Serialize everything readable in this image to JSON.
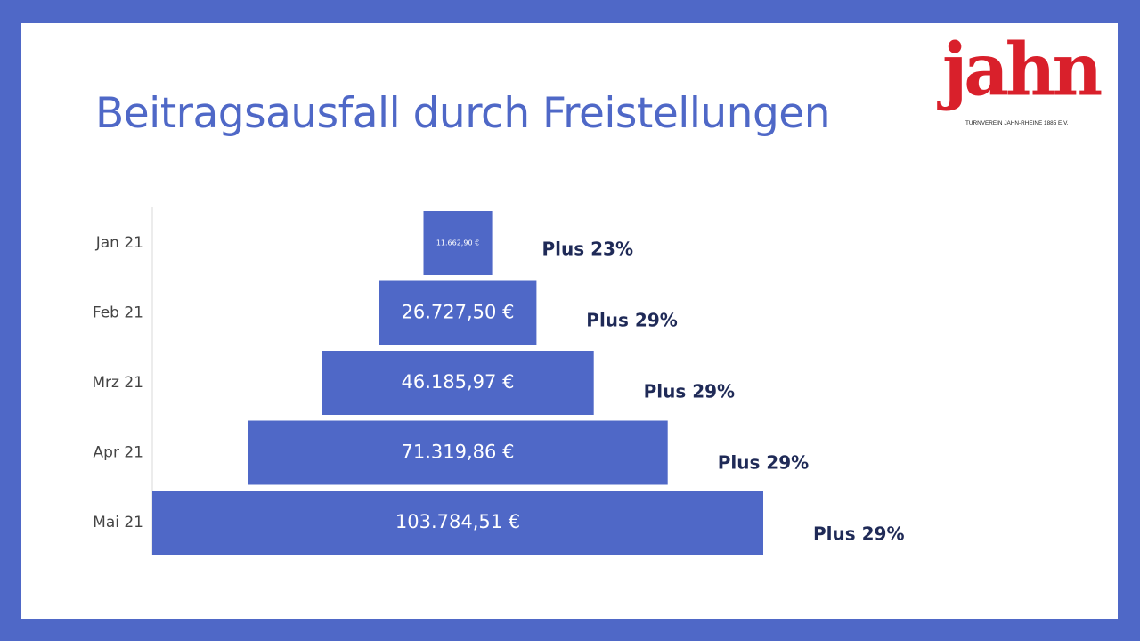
{
  "slide": {
    "title": "Beitragsausfall durch Freistellungen"
  },
  "logo": {
    "name": "jahn",
    "subtitle": "TURNVEREIN JAHN-RHEINE 1885 E.V."
  },
  "colors": {
    "background": "#4f68c7",
    "bar": "#4f68c7",
    "title": "#4f68c7",
    "logo": "#d9202b",
    "growth_text": "#1f2a57"
  },
  "chart_data": {
    "type": "bar",
    "orientation": "horizontal-centered-funnel",
    "categories": [
      "Jan 21",
      "Feb 21",
      "Mrz 21",
      "Apr 21",
      "Mai 21"
    ],
    "values": [
      11662.9,
      26727.5,
      46185.97,
      71319.86,
      103784.51
    ],
    "value_labels": [
      "11.662,90 €",
      "26.727,50 €",
      "46.185,97 €",
      "71.319,86 €",
      "103.784,51 €"
    ],
    "growth_labels": [
      "Plus 23%",
      "Plus 29%",
      "Plus 29%",
      "Plus 29%",
      "Plus 29%"
    ],
    "title": "",
    "xlabel": "",
    "ylabel": "",
    "grid": false,
    "legend": "none"
  }
}
